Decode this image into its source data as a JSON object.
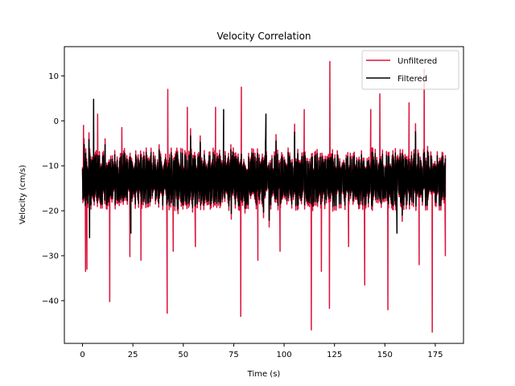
{
  "chart_data": {
    "type": "line",
    "title": "Velocity Correlation",
    "xlabel": "Time (s)",
    "ylabel": "Velocity (cm/s)",
    "xlim": [
      -9,
      189
    ],
    "ylim": [
      -49.5,
      16.5
    ],
    "xticks": [
      0,
      25,
      50,
      75,
      100,
      125,
      150,
      175
    ],
    "yticks": [
      10,
      0,
      -10,
      -20,
      -30,
      -40
    ],
    "ytick_labels": [
      "10",
      "0",
      "−10",
      "−20",
      "−30",
      "−40"
    ],
    "legend_position": "top-right",
    "series": [
      {
        "name": "Unfiltered",
        "color": "#dc143c",
        "noise": {
          "t_start": 0,
          "t_end": 180,
          "mean": -13,
          "amplitude": 7,
          "seed": 12345
        },
        "spikes": [
          {
            "t": 0.5,
            "v": -1
          },
          {
            "t": 1.5,
            "v": -33.5
          },
          {
            "t": 2.2,
            "v": -33
          },
          {
            "t": 7.5,
            "v": 1.5
          },
          {
            "t": 13.5,
            "v": -40.2
          },
          {
            "t": 19.5,
            "v": -1.5
          },
          {
            "t": 23.5,
            "v": -30.2
          },
          {
            "t": 29,
            "v": -31
          },
          {
            "t": 42,
            "v": -42.8
          },
          {
            "t": 42.3,
            "v": 7
          },
          {
            "t": 45,
            "v": -29
          },
          {
            "t": 52,
            "v": 3
          },
          {
            "t": 56,
            "v": -28
          },
          {
            "t": 66,
            "v": 3
          },
          {
            "t": 78.5,
            "v": -43.5
          },
          {
            "t": 78.8,
            "v": 7.5
          },
          {
            "t": 87,
            "v": -31
          },
          {
            "t": 98,
            "v": -29
          },
          {
            "t": 110,
            "v": 2.5
          },
          {
            "t": 113.5,
            "v": -46.5
          },
          {
            "t": 118.5,
            "v": -33.5
          },
          {
            "t": 122.5,
            "v": -41.7
          },
          {
            "t": 122.7,
            "v": 13.2
          },
          {
            "t": 132,
            "v": -28
          },
          {
            "t": 140,
            "v": -36.5
          },
          {
            "t": 143,
            "v": 2.5
          },
          {
            "t": 147.5,
            "v": 6
          },
          {
            "t": 151.5,
            "v": -42
          },
          {
            "t": 162,
            "v": 4
          },
          {
            "t": 167,
            "v": -32
          },
          {
            "t": 169.5,
            "v": 11.5
          },
          {
            "t": 173.5,
            "v": -47
          },
          {
            "t": 180,
            "v": -30
          }
        ]
      },
      {
        "name": "Filtered",
        "color": "#000000",
        "noise": {
          "t_start": 0,
          "t_end": 180,
          "mean": -13,
          "amplitude": 6,
          "seed": 12345
        },
        "spikes": [
          {
            "t": 5.5,
            "v": 4.8
          },
          {
            "t": 3.5,
            "v": -26
          },
          {
            "t": 24,
            "v": -25
          },
          {
            "t": 70,
            "v": 2.5
          },
          {
            "t": 91,
            "v": 1.5
          },
          {
            "t": 156,
            "v": -25
          }
        ]
      }
    ]
  }
}
